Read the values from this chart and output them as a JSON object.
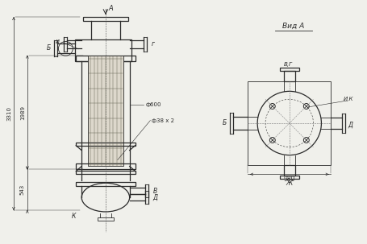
{
  "bg_color": "#f0f0eb",
  "line_color": "#2a2a2a",
  "title": "Вид А",
  "dim_3310": "3310",
  "dim_1989": "1989",
  "dim_543": "543",
  "dim_phi600": "ф600",
  "dim_phi38": "ф38 х 2",
  "dim_980": "980",
  "label_A": "А",
  "label_B": "Б",
  "label_V": "В",
  "label_G": "г",
  "label_D": "Д",
  "label_I": "и",
  "label_K": "К",
  "label_VG": "В,Г",
  "label_IK": "И,К",
  "label_Zh": "Ж",
  "label_D2": "Д"
}
